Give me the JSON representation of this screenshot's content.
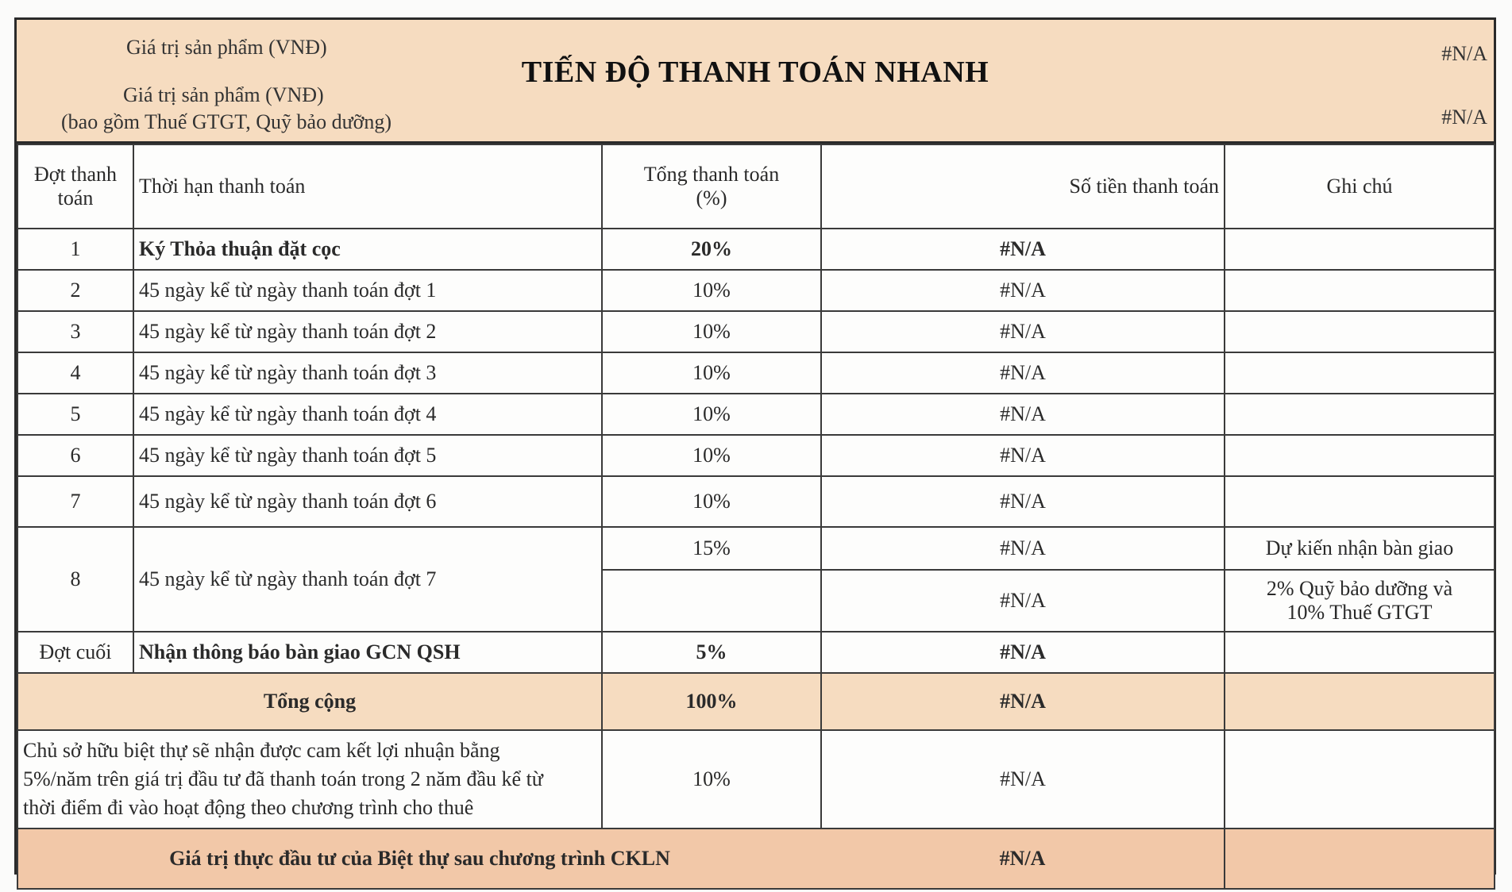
{
  "header": {
    "label_1": "Giá trị sản phẩm (VNĐ)",
    "label_2": "Giá trị sản phẩm (VNĐ)",
    "label_2_note": "(bao gồm Thuế GTGT, Quỹ bảo dưỡng)",
    "title": "TIẾN ĐỘ THANH TOÁN NHANH",
    "value_1": "#N/A",
    "value_2": "#N/A"
  },
  "columns": {
    "dot_line1": "Đợt thanh",
    "dot_line2": "toán",
    "thoi_han": "Thời hạn thanh toán",
    "tong_line1": "Tổng thanh toán",
    "tong_line2": "(%)",
    "so_tien": "Số tiền thanh toán",
    "ghi_chu": "Ghi chú"
  },
  "rows": [
    {
      "dot": "1",
      "term": "Ký Thỏa thuận đặt cọc",
      "pct": "20%",
      "amount": "#N/A",
      "note": ""
    },
    {
      "dot": "2",
      "term": "45 ngày kể từ ngày thanh toán đợt 1",
      "pct": "10%",
      "amount": "#N/A",
      "note": ""
    },
    {
      "dot": "3",
      "term": "45 ngày kể từ ngày thanh toán đợt 2",
      "pct": "10%",
      "amount": "#N/A",
      "note": ""
    },
    {
      "dot": "4",
      "term": "45 ngày kể từ ngày thanh toán đợt 3",
      "pct": "10%",
      "amount": "#N/A",
      "note": ""
    },
    {
      "dot": "5",
      "term": "45 ngày kể từ ngày thanh toán đợt 4",
      "pct": "10%",
      "amount": "#N/A",
      "note": ""
    },
    {
      "dot": "6",
      "term": "45 ngày kể từ ngày thanh toán đợt 5",
      "pct": "10%",
      "amount": "#N/A",
      "note": ""
    },
    {
      "dot": "7",
      "term": "45 ngày kể từ ngày thanh toán đợt 6",
      "pct": "10%",
      "amount": "#N/A",
      "note": ""
    }
  ],
  "row8": {
    "dot": "8",
    "term": "45 ngày kể từ ngày thanh toán đợt 7",
    "a": {
      "pct": "15%",
      "amount": "#N/A",
      "note": "Dự kiến nhận bàn giao"
    },
    "b": {
      "pct": "",
      "amount": "#N/A",
      "note_line1": "2% Quỹ bảo dưỡng và",
      "note_line2": "10% Thuế GTGT"
    }
  },
  "final": {
    "dot": "Đợt cuối",
    "term": "Nhận thông báo bàn giao GCN QSH",
    "pct": "5%",
    "amount": "#N/A",
    "note": ""
  },
  "total": {
    "label": "Tổng cộng",
    "pct": "100%",
    "amount": "#N/A"
  },
  "commitment": {
    "line1": "Chủ sở hữu biệt thự sẽ nhận được cam kết lợi nhuận bằng",
    "line2": "5%/năm trên giá trị đầu tư đã thanh toán trong 2 năm đầu kể từ",
    "line3": "thời điểm đi vào hoạt động theo chương trình cho thuê",
    "pct": "10%",
    "amount": "#N/A"
  },
  "real_value": {
    "label": "Giá trị thực đầu tư của Biệt thự sau chương trình CKLN",
    "amount": "#N/A"
  }
}
